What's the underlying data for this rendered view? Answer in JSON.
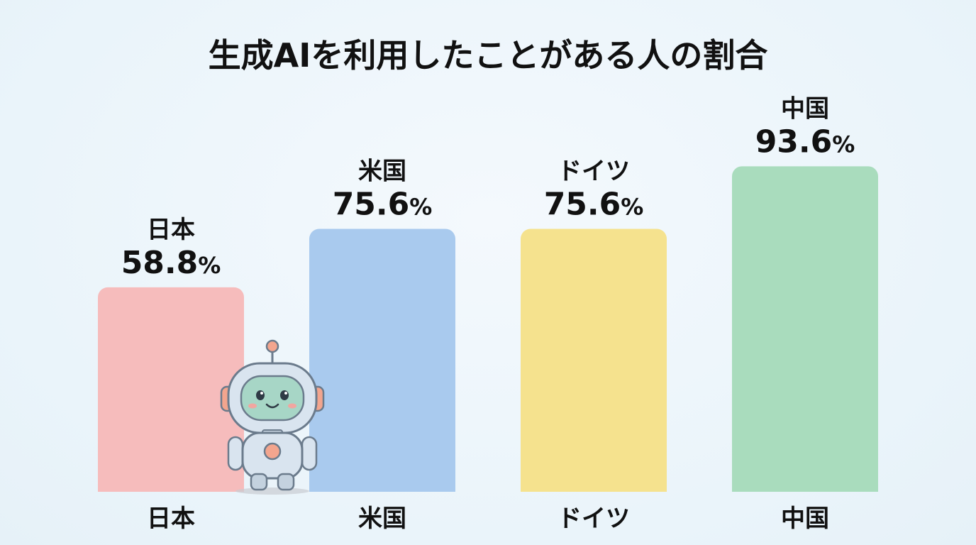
{
  "chart_data": {
    "type": "bar",
    "title": "生成AIを利用したことがある人の割合",
    "categories": [
      "日本",
      "米国",
      "ドイツ",
      "中国"
    ],
    "values": [
      58.8,
      75.6,
      75.6,
      93.6
    ],
    "value_labels": [
      "58.8%",
      "75.6%",
      "75.6%",
      "93.6%"
    ],
    "unit": "%",
    "colors": [
      "#f6bcbc",
      "#a9caee",
      "#f5e28e",
      "#a9dcbd"
    ],
    "xlabel": "",
    "ylabel": "",
    "ylim": [
      0,
      100
    ],
    "grid": false,
    "legend": "none"
  },
  "decoration": {
    "mascot_icon": "robot-mascot-icon"
  }
}
